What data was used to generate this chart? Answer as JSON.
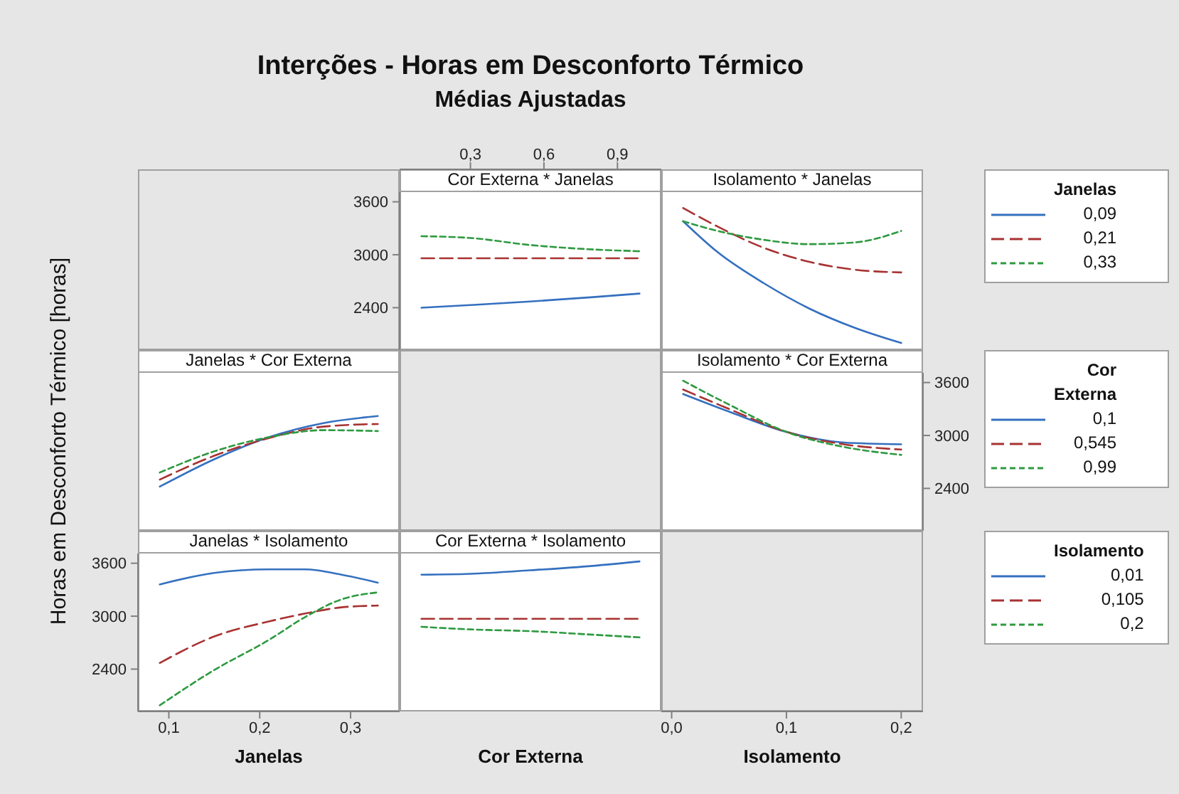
{
  "chart_data": [
    {
      "type": "other",
      "title": "Interções - Horas em Desconforto Térmico",
      "subtitle": "Médias Ajustadas"
    },
    {
      "type": "line",
      "title": "Cor Externa * Janelas",
      "x": [
        0.1,
        0.3,
        0.545,
        0.8,
        0.99
      ],
      "xlim": [
        0.011,
        1.079
      ],
      "xticks": [
        {
          "value": 0.3,
          "label": "0,3"
        },
        {
          "value": 0.6,
          "label": "0,6"
        },
        {
          "value": 0.9,
          "label": "0,9"
        }
      ],
      "ylim": [
        1920,
        3710
      ],
      "yticks": [
        2400,
        3000,
        3600
      ],
      "series": [
        {
          "color": "#3470bf",
          "line_style": "solid",
          "values": [
            2400,
            2430,
            2470,
            2520,
            2560
          ]
        },
        {
          "color": "#a83232",
          "line_style": "dashed",
          "values": [
            2960,
            2960,
            2960,
            2960,
            2960
          ]
        },
        {
          "color": "#2e9a40",
          "line_style": "dotted",
          "values": [
            3210,
            3190,
            3110,
            3060,
            3040
          ]
        }
      ]
    },
    {
      "type": "line",
      "title": "Isolamento * Janelas",
      "x": [
        0.01,
        0.04,
        0.08,
        0.12,
        0.16,
        0.2
      ],
      "xlim": [
        -0.009,
        0.219
      ],
      "ylim": [
        1920,
        3710
      ],
      "tick_labels": false,
      "legend": "right",
      "legend_title": "Janelas",
      "series": [
        {
          "name": "0,09",
          "color": "#3470bf",
          "line_style": "solid",
          "values": [
            3380,
            3030,
            2680,
            2390,
            2170,
            2000
          ]
        },
        {
          "name": "0,21",
          "color": "#a83232",
          "line_style": "dashed",
          "values": [
            3530,
            3320,
            3080,
            2920,
            2830,
            2800
          ]
        },
        {
          "name": "0,33",
          "color": "#2e9a40",
          "line_style": "dotted",
          "values": [
            3380,
            3270,
            3170,
            3120,
            3140,
            3270
          ]
        }
      ]
    },
    {
      "type": "line",
      "title": "Janelas * Cor Externa",
      "x": [
        0.09,
        0.15,
        0.21,
        0.27,
        0.33
      ],
      "xlim": [
        0.066,
        0.354
      ],
      "ylim": [
        1920,
        3710
      ],
      "tick_labels": false,
      "ylabel": "Horas em Desconforto Térmico [horas]",
      "series": [
        {
          "color": "#3470bf",
          "line_style": "solid",
          "values": [
            2420,
            2730,
            2980,
            3140,
            3220
          ]
        },
        {
          "color": "#a83232",
          "line_style": "dashed",
          "values": [
            2500,
            2770,
            2970,
            3100,
            3130
          ]
        },
        {
          "color": "#2e9a40",
          "line_style": "dotted",
          "values": [
            2580,
            2820,
            2980,
            3060,
            3050
          ]
        }
      ]
    },
    {
      "type": "line",
      "title": "Isolamento * Cor Externa",
      "x": [
        0.01,
        0.05,
        0.1,
        0.15,
        0.2
      ],
      "xlim": [
        -0.009,
        0.219
      ],
      "xticks": [
        {
          "value": 0,
          "label": "0,0"
        },
        {
          "value": 0.1,
          "label": "0,1"
        },
        {
          "value": 0.2,
          "label": "0,2"
        }
      ],
      "xlabel": "Isolamento",
      "y2lim": [
        1920,
        3710
      ],
      "y2ticks": [
        2400,
        3000,
        3600
      ],
      "legend": "right",
      "legend_title": "Cor Externa",
      "series": [
        {
          "name": "0,1",
          "color": "#3470bf",
          "line_style": "solid",
          "axis": "y2",
          "values": [
            3470,
            3270,
            3040,
            2920,
            2900
          ]
        },
        {
          "name": "0,545",
          "color": "#a83232",
          "line_style": "dashed",
          "axis": "y2",
          "values": [
            3520,
            3300,
            3040,
            2900,
            2840
          ]
        },
        {
          "name": "0,99",
          "color": "#2e9a40",
          "line_style": "dotted",
          "axis": "y2",
          "values": [
            3620,
            3350,
            3040,
            2870,
            2780
          ]
        }
      ]
    },
    {
      "type": "line",
      "title": "Janelas * Isolamento",
      "x": [
        0.09,
        0.15,
        0.21,
        0.25,
        0.29,
        0.33
      ],
      "xlim": [
        0.066,
        0.354
      ],
      "xticks": [
        {
          "value": 0.1,
          "label": "0,1"
        },
        {
          "value": 0.2,
          "label": "0,2"
        },
        {
          "value": 0.3,
          "label": "0,3"
        }
      ],
      "xlabel": "Janelas",
      "ylim": [
        1920,
        3710
      ],
      "yticks": [
        2400,
        3000,
        3600
      ],
      "series": [
        {
          "color": "#3470bf",
          "line_style": "solid",
          "values": [
            3360,
            3490,
            3530,
            3530,
            3470,
            3380
          ]
        },
        {
          "color": "#a83232",
          "line_style": "dashed",
          "values": [
            2470,
            2770,
            2940,
            3030,
            3100,
            3120
          ]
        },
        {
          "color": "#2e9a40",
          "line_style": "dotted",
          "values": [
            1990,
            2390,
            2730,
            2990,
            3190,
            3270
          ]
        }
      ]
    },
    {
      "type": "line",
      "title": "Cor Externa * Isolamento",
      "x": [
        0.1,
        0.3,
        0.545,
        0.8,
        0.99
      ],
      "xlim": [
        0.011,
        1.079
      ],
      "xlabel": "Cor Externa",
      "ylim": [
        1920,
        3710
      ],
      "tick_labels": false,
      "legend": "right",
      "legend_title": "Isolamento",
      "series": [
        {
          "name": "0,01",
          "color": "#3470bf",
          "line_style": "solid",
          "values": [
            3470,
            3480,
            3520,
            3570,
            3620
          ]
        },
        {
          "name": "0,105",
          "color": "#a83232",
          "line_style": "dashed",
          "values": [
            2970,
            2970,
            2970,
            2970,
            2970
          ]
        },
        {
          "name": "0,2",
          "color": "#2e9a40",
          "line_style": "dotted",
          "values": [
            2880,
            2850,
            2830,
            2790,
            2760
          ]
        }
      ]
    }
  ]
}
